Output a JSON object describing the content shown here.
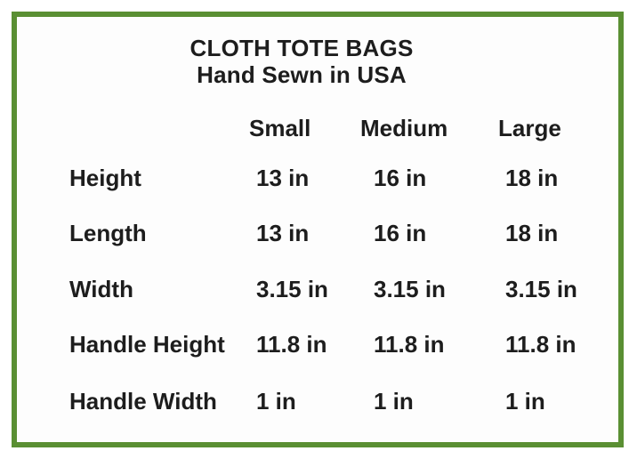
{
  "colors": {
    "border_green": "#5a8f33",
    "background": "#fdfdfd",
    "text": "#1d1d1d"
  },
  "chart_data": {
    "type": "table",
    "title": "CLOTH TOTE BAGS",
    "subtitle": "Hand Sewn in USA",
    "columns": [
      "",
      "Small",
      "Medium",
      "Large"
    ],
    "rows": [
      [
        "Height",
        "13 in",
        "16 in",
        "18 in"
      ],
      [
        "Length",
        "13 in",
        "16 in",
        "18 in"
      ],
      [
        "Width",
        "3.15 in",
        "3.15 in",
        "3.15 in"
      ],
      [
        "Handle Height",
        "11.8 in",
        "11.8 in",
        "11.8 in"
      ],
      [
        "Handle Width",
        "1 in",
        "1 in",
        "1 in"
      ]
    ]
  }
}
